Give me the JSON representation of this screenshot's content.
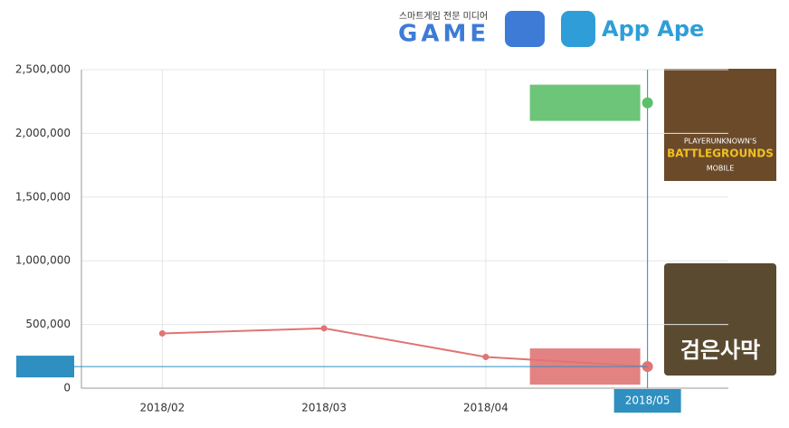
{
  "header": {
    "media_tagline": "스마트게임 전문 미디어",
    "media_logo": "GAME",
    "brand": "App Ape"
  },
  "games": [
    {
      "line1": "PLAYERUNKNOWN'S",
      "line2": "BATTLEGROUNDS",
      "line3": "MOBILE"
    },
    {
      "title": "검은사막"
    }
  ],
  "chart_data": {
    "type": "line",
    "categories": [
      "2018/02",
      "2018/03",
      "2018/04",
      "2018/05"
    ],
    "series": [
      {
        "color": "#e07474",
        "values": [
          430000,
          470000,
          245000,
          170000
        ]
      },
      {
        "color": "#5cbf6a",
        "values": [
          null,
          null,
          null,
          2240000
        ]
      }
    ],
    "ylim": [
      0,
      2500000
    ],
    "yticks": [
      0,
      {
        "value": 500000,
        "label": "500,000"
      },
      {
        "value": 1000000,
        "label": "1,000,000"
      },
      {
        "value": 1500000,
        "label": "1,500,000"
      },
      {
        "value": 2000000,
        "label": "2,000,000"
      },
      {
        "value": 2500000,
        "label": "2,500,000"
      }
    ],
    "grid": true,
    "highlight_category": 3
  }
}
